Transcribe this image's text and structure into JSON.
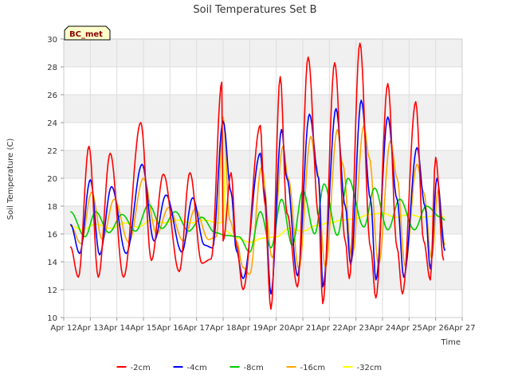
{
  "chart_data": {
    "type": "line",
    "title": "Soil Temperatures Set B",
    "xlabel": "Time",
    "ylabel": "Soil Temperature (C)",
    "badge": "BC_met",
    "ylim": [
      10,
      30
    ],
    "yticks": [
      10,
      12,
      14,
      16,
      18,
      20,
      22,
      24,
      26,
      28,
      30
    ],
    "xlim": [
      0,
      15
    ],
    "xticks": [
      0,
      1,
      2,
      3,
      4,
      5,
      6,
      7,
      8,
      9,
      10,
      11,
      12,
      13,
      14,
      15
    ],
    "xtick_labels": [
      "Apr 12",
      "Apr 13",
      "Apr 14",
      "Apr 15",
      "Apr 16",
      "Apr 17",
      "Apr 18",
      "Apr 19",
      "Apr 20",
      "Apr 21",
      "Apr 22",
      "Apr 23",
      "Apr 24",
      "Apr 25",
      "Apr 26",
      "Apr 27"
    ],
    "background_bands": true,
    "legend_position": "bottom",
    "series": [
      {
        "name": "-2cm",
        "color": "#ff0000",
        "x": [
          0.25,
          0.55,
          0.95,
          1.3,
          1.75,
          2.25,
          2.9,
          3.3,
          3.75,
          4.35,
          4.75,
          5.2,
          5.55,
          5.95,
          6.0,
          6.3,
          6.5,
          6.75,
          7.4,
          7.55,
          7.8,
          8.15,
          8.4,
          8.8,
          9.2,
          9.6,
          9.75,
          10.2,
          10.6,
          10.75,
          11.15,
          11.55,
          11.75,
          12.2,
          12.55,
          12.75,
          13.25,
          13.55,
          13.8,
          14.0,
          14.3
        ],
        "y": [
          15.1,
          12.9,
          22.3,
          12.9,
          21.8,
          12.9,
          24.0,
          14.1,
          20.3,
          13.3,
          20.4,
          13.9,
          14.2,
          26.9,
          15.5,
          20.4,
          15.2,
          12.0,
          23.8,
          18.5,
          10.6,
          27.3,
          17.5,
          12.2,
          28.7,
          17.2,
          11.0,
          28.3,
          15.5,
          12.8,
          29.7,
          15.0,
          11.4,
          26.8,
          15.0,
          11.7,
          25.5,
          15.5,
          12.7,
          21.5,
          14.1
        ]
      },
      {
        "name": "-4cm",
        "color": "#0000ff",
        "x": [
          0.25,
          0.6,
          1.0,
          1.35,
          1.8,
          2.35,
          2.95,
          3.4,
          3.85,
          4.45,
          4.85,
          5.3,
          5.6,
          6.0,
          6.3,
          6.5,
          6.75,
          7.4,
          7.55,
          7.8,
          8.2,
          8.4,
          8.8,
          9.25,
          9.6,
          9.75,
          10.25,
          10.6,
          10.8,
          11.2,
          11.55,
          11.75,
          12.2,
          12.55,
          12.8,
          13.3,
          13.6,
          13.8,
          14.05,
          14.35
        ],
        "y": [
          16.7,
          14.6,
          19.9,
          14.5,
          19.4,
          14.6,
          21.0,
          15.5,
          18.8,
          14.7,
          18.6,
          15.2,
          15.0,
          24.1,
          19.0,
          14.8,
          12.8,
          21.8,
          19.0,
          11.7,
          23.5,
          20.0,
          13.0,
          24.6,
          20.0,
          12.2,
          25.0,
          18.0,
          13.8,
          25.6,
          18.5,
          12.7,
          24.4,
          18.5,
          12.9,
          22.2,
          18.0,
          13.5,
          20.0,
          14.8
        ]
      },
      {
        "name": "-8cm",
        "color": "#00cc00",
        "x": [
          0.25,
          0.8,
          1.2,
          1.7,
          2.2,
          2.7,
          3.2,
          3.7,
          4.2,
          4.7,
          5.2,
          5.7,
          6.1,
          6.6,
          7.0,
          7.4,
          7.8,
          8.2,
          8.6,
          9.0,
          9.45,
          9.8,
          10.3,
          10.7,
          11.3,
          11.7,
          12.2,
          12.65,
          13.2,
          13.65,
          14.2,
          14.35
        ],
        "y": [
          17.6,
          15.8,
          17.6,
          16.1,
          17.4,
          16.2,
          18.1,
          16.4,
          17.6,
          16.2,
          17.2,
          16.1,
          15.9,
          15.8,
          14.7,
          17.6,
          15.0,
          18.5,
          15.2,
          19.1,
          16.0,
          19.6,
          15.9,
          20.0,
          16.5,
          19.3,
          16.3,
          18.5,
          16.3,
          18.0,
          17.2,
          17.0
        ]
      },
      {
        "name": "-16cm",
        "color": "#ffa500",
        "x": [
          0.25,
          0.65,
          1.05,
          1.45,
          1.9,
          2.45,
          3.0,
          3.5,
          3.95,
          4.5,
          4.95,
          5.45,
          5.75,
          6.0,
          6.25,
          6.5,
          6.75,
          7.0,
          7.45,
          7.85,
          8.25,
          8.45,
          8.85,
          9.3,
          9.5,
          9.85,
          10.3,
          10.5,
          10.85,
          11.3,
          11.5,
          11.85,
          12.3,
          12.55,
          12.85,
          13.3,
          13.55,
          13.85,
          14.1,
          14.35
        ],
        "y": [
          16.6,
          15.3,
          19.0,
          15.6,
          18.5,
          15.4,
          20.0,
          16.0,
          17.9,
          15.5,
          17.8,
          15.6,
          15.8,
          24.4,
          17.0,
          15.5,
          13.6,
          13.1,
          20.8,
          14.3,
          22.3,
          20.0,
          13.5,
          23.0,
          21.0,
          13.6,
          23.5,
          21.0,
          14.3,
          23.8,
          21.5,
          13.8,
          22.7,
          20.0,
          13.7,
          21.0,
          19.0,
          14.2,
          19.2,
          15.2
        ]
      },
      {
        "name": "-32cm",
        "color": "#ffff00",
        "x": [
          0.25,
          0.7,
          1.2,
          1.8,
          2.3,
          2.8,
          3.3,
          3.8,
          4.3,
          4.8,
          5.3,
          5.8,
          5.95,
          6.0,
          6.1,
          6.5,
          7.0,
          7.5,
          8.0,
          8.5,
          9.0,
          9.5,
          10.0,
          10.5,
          11.0,
          11.5,
          12.0,
          12.5,
          13.0,
          13.5,
          14.0,
          14.35
        ],
        "y": [
          16.6,
          16.3,
          16.7,
          16.4,
          16.8,
          16.5,
          17.0,
          16.8,
          17.0,
          16.8,
          17.0,
          16.8,
          16.8,
          22.6,
          16.2,
          15.7,
          15.4,
          15.7,
          15.8,
          16.4,
          16.2,
          16.6,
          16.8,
          17.0,
          17.1,
          17.4,
          17.5,
          17.2,
          17.4,
          17.2,
          17.3,
          17.2
        ]
      }
    ]
  }
}
